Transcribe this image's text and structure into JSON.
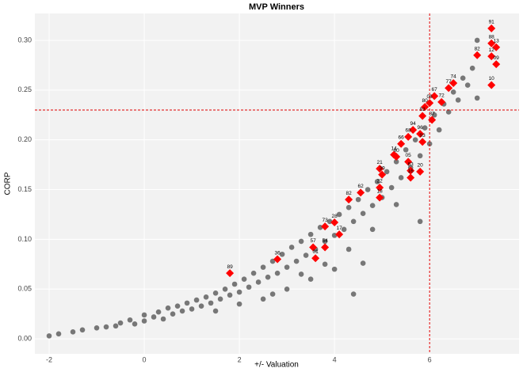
{
  "chart_data": {
    "type": "scatter",
    "title": "MVP Winners",
    "x_label": "+/- Valuation",
    "y_label": "CORP",
    "xlim": [
      -2.3,
      7.88
    ],
    "ylim": [
      -0.015,
      0.327
    ],
    "xticks": [
      -2,
      0,
      2,
      4,
      6
    ],
    "yticks": [
      {
        "value": 0,
        "label": "0.00"
      },
      {
        "value": 0.05,
        "label": "0.05"
      },
      {
        "value": 0.1,
        "label": "0.10"
      },
      {
        "value": 0.15,
        "label": "0.15"
      },
      {
        "value": 0.2,
        "label": "0.20"
      },
      {
        "value": 0.25,
        "label": "0.25"
      },
      {
        "value": 0.3,
        "label": "0.30"
      }
    ],
    "grid": true,
    "reference_lines": {
      "x": 6,
      "y": 0.23,
      "color": "#e00000"
    },
    "series": [
      {
        "color": "#777777",
        "marker": "circle",
        "x": [
          -2.0,
          -1.8,
          -1.5,
          -1.3,
          -1.0,
          -0.8,
          -0.6,
          -0.5,
          -0.3,
          -0.2,
          0.0,
          0.0,
          0.2,
          0.3,
          0.4,
          0.5,
          0.6,
          0.7,
          0.8,
          0.9,
          1.0,
          1.1,
          1.2,
          1.3,
          1.4,
          1.5,
          1.6,
          1.7,
          1.8,
          1.9,
          2.0,
          2.1,
          2.2,
          2.3,
          2.4,
          2.5,
          2.6,
          2.7,
          2.8,
          2.9,
          3.0,
          3.1,
          3.2,
          3.3,
          3.4,
          3.5,
          3.6,
          3.7,
          3.8,
          3.9,
          4.0,
          4.1,
          4.2,
          4.3,
          4.4,
          4.5,
          4.6,
          4.7,
          4.8,
          4.9,
          5.0,
          5.1,
          5.2,
          5.3,
          5.4,
          5.5,
          5.6,
          5.7,
          5.8,
          5.9,
          6.0,
          6.1,
          6.2,
          6.3,
          6.4,
          6.5,
          6.6,
          6.7,
          6.8,
          6.9,
          7.0,
          7.0,
          4.4,
          4.6,
          5.8,
          3.0,
          3.5,
          2.5,
          4.0,
          1.5,
          2.0,
          2.7,
          3.3,
          3.8,
          4.3,
          4.8,
          5.3
        ],
        "values": [
          0.003,
          0.005,
          0.007,
          0.009,
          0.011,
          0.012,
          0.013,
          0.016,
          0.019,
          0.015,
          0.018,
          0.024,
          0.022,
          0.027,
          0.02,
          0.031,
          0.025,
          0.033,
          0.028,
          0.036,
          0.03,
          0.039,
          0.033,
          0.042,
          0.036,
          0.046,
          0.04,
          0.05,
          0.044,
          0.055,
          0.047,
          0.06,
          0.052,
          0.066,
          0.057,
          0.072,
          0.062,
          0.078,
          0.066,
          0.085,
          0.072,
          0.092,
          0.078,
          0.098,
          0.084,
          0.105,
          0.09,
          0.112,
          0.098,
          0.118,
          0.104,
          0.125,
          0.11,
          0.132,
          0.118,
          0.14,
          0.126,
          0.15,
          0.134,
          0.158,
          0.142,
          0.168,
          0.152,
          0.178,
          0.162,
          0.19,
          0.172,
          0.2,
          0.184,
          0.212,
          0.196,
          0.225,
          0.21,
          0.236,
          0.228,
          0.248,
          0.24,
          0.262,
          0.255,
          0.272,
          0.3,
          0.242,
          0.045,
          0.076,
          0.118,
          0.05,
          0.06,
          0.04,
          0.07,
          0.028,
          0.035,
          0.045,
          0.065,
          0.075,
          0.09,
          0.11,
          0.135
        ]
      },
      {
        "color": "#ff0000",
        "marker": "diamond",
        "x": [
          7.3,
          7.3,
          7.4,
          7.0,
          7.3,
          7.4,
          7.3,
          6.5,
          6.4,
          6.1,
          6.25,
          6.0,
          5.9,
          6.05,
          5.85,
          5.65,
          5.55,
          5.8,
          5.85,
          5.4,
          5.25,
          5.3,
          5.55,
          4.95,
          5.0,
          5.6,
          5.8,
          5.6,
          4.55,
          4.3,
          4.95,
          4.95,
          3.8,
          4.0,
          4.1,
          3.55,
          3.8,
          3.6,
          2.8,
          1.8
        ],
        "values": [
          0.312,
          0.297,
          0.293,
          0.285,
          0.284,
          0.276,
          0.255,
          0.257,
          0.252,
          0.244,
          0.238,
          0.237,
          0.233,
          0.22,
          0.224,
          0.21,
          0.203,
          0.206,
          0.198,
          0.196,
          0.185,
          0.183,
          0.178,
          0.171,
          0.165,
          0.169,
          0.168,
          0.162,
          0.147,
          0.14,
          0.142,
          0.152,
          0.113,
          0.117,
          0.105,
          0.092,
          0.092,
          0.081,
          0.08,
          0.066
        ],
        "point_labels": [
          "91",
          "88",
          "13",
          "82",
          "12",
          "09",
          "10",
          "74",
          "77",
          "67",
          "72",
          "06",
          "80",
          "87",
          "83",
          "94",
          "68",
          "96",
          "93",
          "66",
          "14",
          "60",
          "05",
          "21",
          "39",
          "63",
          "20",
          "16",
          "62",
          "82",
          "18",
          "22",
          "73",
          "28",
          "17",
          "57",
          "54",
          "01",
          "36",
          "89"
        ]
      }
    ]
  }
}
